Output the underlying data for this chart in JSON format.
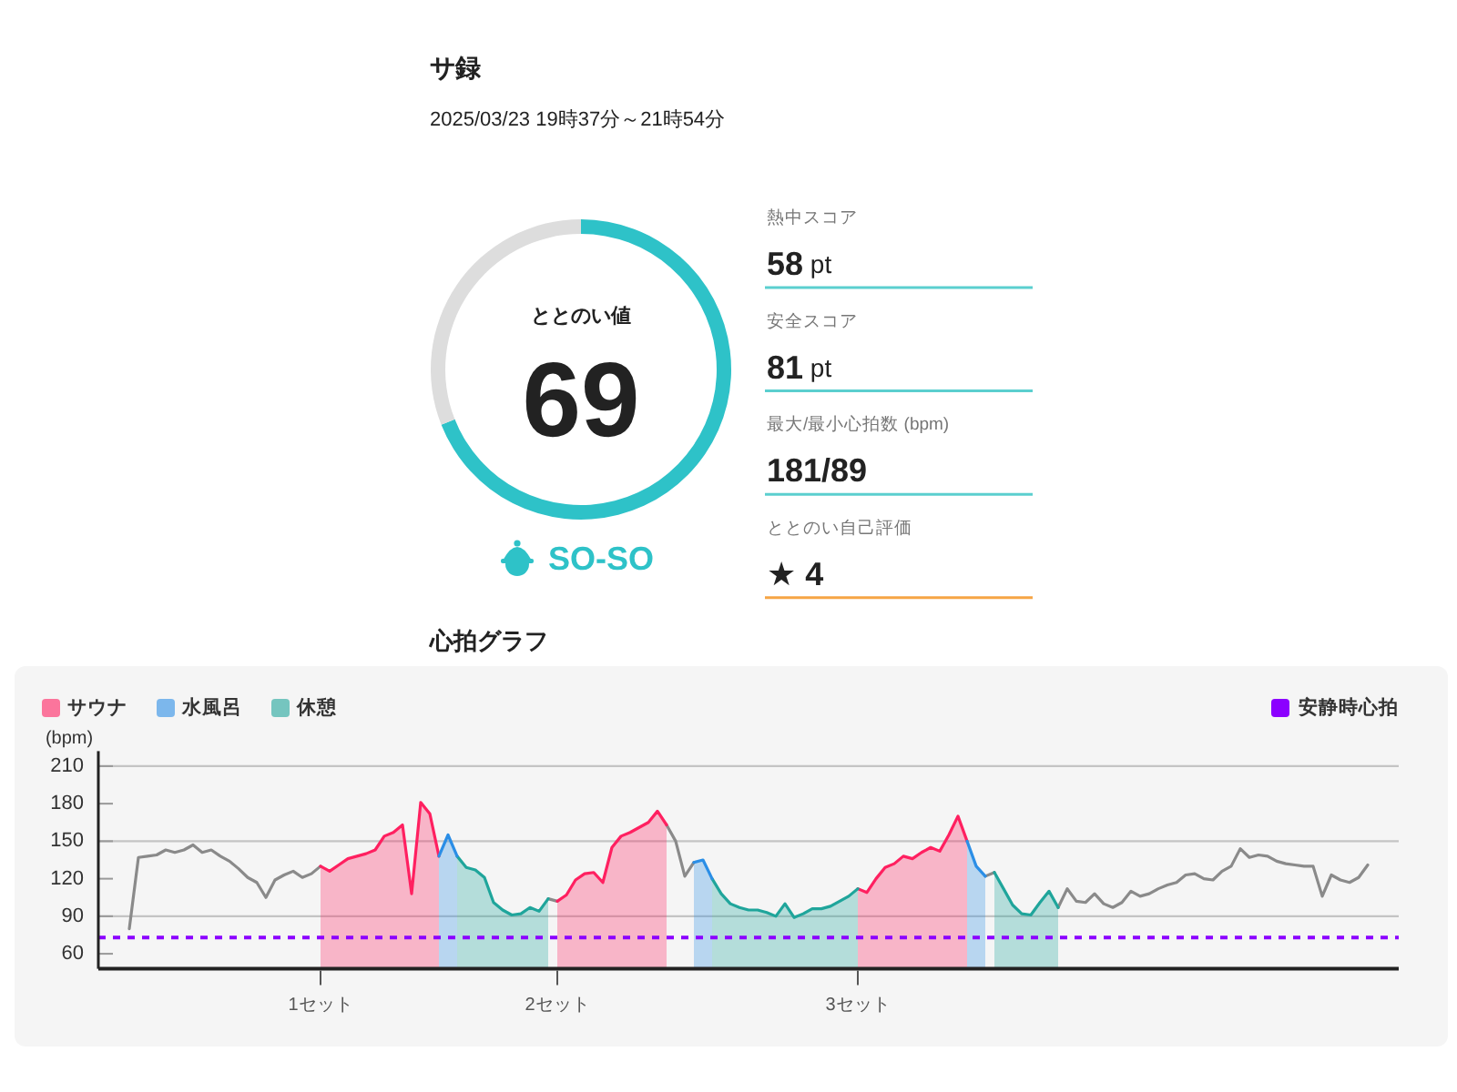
{
  "chart_data": [
    {
      "type": "donut",
      "title": "サ録",
      "subtitle": "2025/03/23 19時37分～21時54分",
      "categories": [
        null,
        null
      ],
      "values": [
        69,
        31
      ],
      "colors": [
        "#2ec2c8",
        "#dddddd"
      ],
      "value_labels": [
        "69",
        null
      ],
      "annotations": [
        "ととのい値",
        "SO-SO"
      ]
    },
    {
      "type": "other",
      "annotations": [
        "熱中スコア",
        "58 pt",
        "安全スコア",
        "81 pt",
        "最大/最小心拍数 (bpm)",
        "181/89",
        "ととのい自己評価",
        "★ 4"
      ]
    },
    {
      "type": "line",
      "title": "心拍グラフ",
      "ylabel": "(bpm)",
      "categories": [
        null,
        null,
        null,
        null,
        null,
        null,
        null,
        null,
        null,
        null,
        null,
        null,
        null,
        null,
        null,
        null,
        null,
        null,
        null,
        null,
        null,
        "1セット",
        null,
        null,
        null,
        null,
        null,
        null,
        null,
        null,
        null,
        null,
        null,
        null,
        null,
        null,
        null,
        null,
        null,
        null,
        null,
        null,
        null,
        null,
        null,
        null,
        null,
        "2セット",
        null,
        null,
        null,
        null,
        null,
        null,
        null,
        null,
        null,
        null,
        null,
        null,
        null,
        null,
        null,
        null,
        null,
        null,
        null,
        null,
        null,
        null,
        null,
        null,
        null,
        null,
        null,
        null,
        null,
        null,
        null,
        null,
        "3セット",
        null,
        null,
        null,
        null,
        null,
        null,
        null,
        null,
        null,
        null,
        null,
        null,
        null,
        null,
        null,
        null,
        null,
        null,
        null,
        null,
        null,
        null,
        null,
        null,
        null,
        null,
        null,
        null,
        null,
        null,
        null,
        null,
        null,
        null,
        null,
        null,
        null,
        null,
        null,
        null,
        null,
        null,
        null,
        null,
        null,
        null,
        null,
        null,
        null,
        null,
        null,
        null,
        null,
        null,
        null,
        null
      ],
      "ylim": [
        48,
        222
      ],
      "yticks": [
        60,
        90,
        120,
        150,
        180,
        210
      ],
      "grid": "y",
      "legend": "top left",
      "series": [
        {
          "type": "line",
          "color": "#8a8a8a",
          "values": [
            80,
            137,
            138,
            139,
            143,
            141,
            143,
            147,
            141,
            143,
            138,
            134,
            128,
            121,
            117,
            105,
            119,
            123,
            126,
            121,
            124,
            130,
            null,
            null,
            null,
            null,
            null,
            null,
            null,
            null,
            null,
            null,
            null,
            null,
            null,
            null,
            null,
            null,
            null,
            null,
            null,
            null,
            null,
            null,
            null,
            null,
            104,
            102,
            null,
            null,
            null,
            null,
            null,
            null,
            null,
            null,
            null,
            null,
            null,
            163,
            150,
            122,
            133,
            null,
            null,
            null,
            null,
            null,
            null,
            null,
            null,
            null,
            null,
            null,
            null,
            null,
            null,
            null,
            null,
            null,
            null,
            null,
            null,
            null,
            null,
            null,
            null,
            null,
            null,
            null,
            null,
            null,
            null,
            null,
            122,
            125,
            null,
            null,
            null,
            null,
            null,
            null,
            97,
            112,
            102,
            101,
            108,
            100,
            97,
            101,
            110,
            106,
            108,
            112,
            115,
            117,
            123,
            124,
            120,
            119,
            126,
            130,
            144,
            137,
            139,
            138,
            134,
            132,
            131,
            130,
            130,
            106,
            123,
            119,
            117,
            121,
            131
          ]
        },
        {
          "name": "サウナ",
          "type": "area",
          "color": "#ff2060",
          "values": [
            null,
            null,
            null,
            null,
            null,
            null,
            null,
            null,
            null,
            null,
            null,
            null,
            null,
            null,
            null,
            null,
            null,
            null,
            null,
            null,
            null,
            130,
            126,
            131,
            136,
            138,
            140,
            143,
            154,
            157,
            163,
            108,
            181,
            172,
            138,
            null,
            null,
            null,
            null,
            null,
            null,
            null,
            null,
            null,
            null,
            null,
            null,
            102,
            107,
            119,
            124,
            125,
            117,
            145,
            154,
            157,
            161,
            165,
            174,
            163,
            null,
            null,
            null,
            null,
            null,
            null,
            null,
            null,
            null,
            null,
            null,
            null,
            null,
            null,
            null,
            null,
            null,
            null,
            null,
            null,
            112,
            109,
            120,
            129,
            132,
            138,
            136,
            141,
            145,
            142,
            155,
            170,
            150,
            null,
            null,
            null,
            null,
            null,
            null,
            null,
            null,
            null,
            null,
            null,
            null,
            null,
            null,
            null,
            null,
            null,
            null,
            null,
            null,
            null,
            null,
            null,
            null,
            null,
            null,
            null,
            null,
            null,
            null,
            null,
            null,
            null,
            null,
            null,
            null,
            null,
            null,
            null,
            null,
            null,
            null,
            null,
            null
          ]
        },
        {
          "name": "水風呂",
          "type": "area",
          "color": "#2b8ee6",
          "values": [
            null,
            null,
            null,
            null,
            null,
            null,
            null,
            null,
            null,
            null,
            null,
            null,
            null,
            null,
            null,
            null,
            null,
            null,
            null,
            null,
            null,
            null,
            null,
            null,
            null,
            null,
            null,
            null,
            null,
            null,
            null,
            null,
            null,
            null,
            138,
            155,
            138,
            null,
            null,
            null,
            null,
            null,
            null,
            null,
            null,
            null,
            null,
            null,
            null,
            null,
            null,
            null,
            null,
            null,
            null,
            null,
            null,
            null,
            null,
            null,
            null,
            null,
            133,
            135,
            120,
            null,
            null,
            null,
            null,
            null,
            null,
            null,
            null,
            null,
            null,
            null,
            null,
            null,
            null,
            null,
            null,
            null,
            null,
            null,
            null,
            null,
            null,
            null,
            null,
            null,
            null,
            null,
            150,
            130,
            122,
            null,
            null,
            null,
            null,
            null,
            null,
            null,
            null,
            null,
            null,
            null,
            null,
            null,
            null,
            null,
            null,
            null,
            null,
            null,
            null,
            null,
            null,
            null,
            null,
            null,
            null,
            null,
            null,
            null,
            null,
            null,
            null,
            null,
            null,
            null,
            null,
            null,
            null,
            null,
            null,
            null,
            null
          ]
        },
        {
          "name": "休憩",
          "type": "area",
          "color": "#1fa59b",
          "values": [
            null,
            null,
            null,
            null,
            null,
            null,
            null,
            null,
            null,
            null,
            null,
            null,
            null,
            null,
            null,
            null,
            null,
            null,
            null,
            null,
            null,
            null,
            null,
            null,
            null,
            null,
            null,
            null,
            null,
            null,
            null,
            null,
            null,
            null,
            null,
            null,
            138,
            129,
            127,
            121,
            101,
            95,
            91,
            92,
            97,
            94,
            104,
            null,
            null,
            null,
            null,
            null,
            null,
            null,
            null,
            null,
            null,
            null,
            null,
            null,
            null,
            null,
            null,
            null,
            120,
            108,
            100,
            97,
            95,
            95,
            93,
            90,
            100,
            89,
            92,
            96,
            96,
            98,
            102,
            106,
            112,
            null,
            null,
            null,
            null,
            null,
            null,
            null,
            null,
            null,
            null,
            null,
            null,
            null,
            null,
            125,
            112,
            99,
            92,
            91,
            101,
            110,
            97,
            null,
            null,
            null,
            null,
            null,
            null,
            null,
            null,
            null,
            null,
            null,
            null,
            null,
            null,
            null,
            null,
            null,
            null,
            null,
            null,
            null,
            null,
            null,
            null,
            null,
            null,
            null,
            null,
            null,
            null,
            null,
            null,
            null,
            null
          ]
        }
      ],
      "ref_lines": [
        {
          "axis": "y",
          "value": 73,
          "label": "安静時心拍",
          "color": "#8b00ff",
          "line_style": "dashed"
        }
      ]
    }
  ]
}
